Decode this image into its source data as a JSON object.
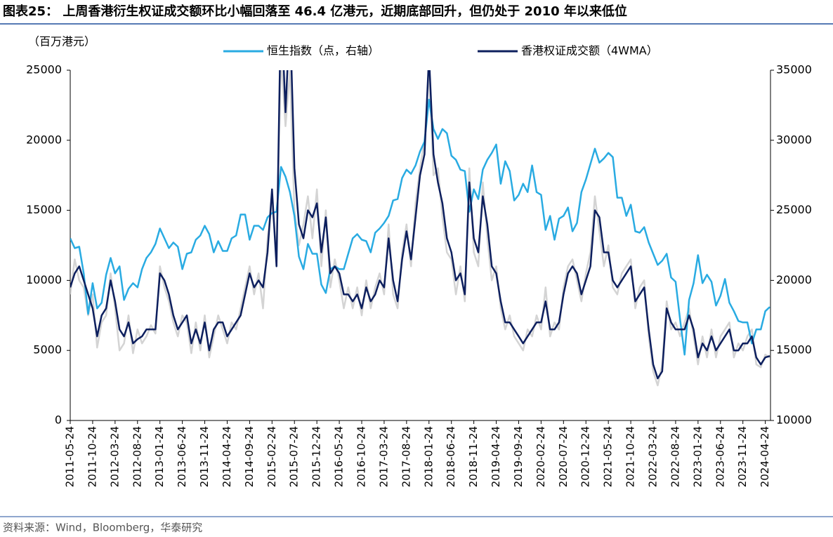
{
  "chart_data": {
    "type": "line",
    "title": "图表25：  上周香港衍生权证成交额环比小幅回落至 46.4 亿港元，近期底部回升，但仍处于 2010 年以来低位",
    "y_label": "（百万港元）",
    "source": "资料来源：Wind，Bloomberg，华泰研究",
    "legend": "top",
    "categories": [
      "2011-05-24",
      null,
      null,
      null,
      null,
      "2011-10-24",
      null,
      null,
      null,
      null,
      "2012-03-24",
      null,
      null,
      null,
      null,
      "2012-08-24",
      null,
      null,
      null,
      null,
      "2013-01-24",
      null,
      null,
      null,
      null,
      "2013-06-24",
      null,
      null,
      null,
      null,
      "2013-11-24",
      null,
      null,
      null,
      null,
      "2014-04-24",
      null,
      null,
      null,
      null,
      "2014-09-24",
      null,
      null,
      null,
      null,
      "2015-02-24",
      null,
      null,
      null,
      null,
      "2015-07-24",
      null,
      null,
      null,
      null,
      "2015-12-24",
      null,
      null,
      null,
      null,
      "2016-05-24",
      null,
      null,
      null,
      null,
      "2016-10-24",
      null,
      null,
      null,
      null,
      "2017-03-24",
      null,
      null,
      null,
      null,
      "2017-08-24",
      null,
      null,
      null,
      null,
      "2018-01-24",
      null,
      null,
      null,
      null,
      "2018-06-24",
      null,
      null,
      null,
      null,
      "2018-11-24",
      null,
      null,
      null,
      null,
      "2019-04-24",
      null,
      null,
      null,
      null,
      "2019-09-24",
      null,
      null,
      null,
      null,
      "2020-02-24",
      null,
      null,
      null,
      null,
      "2020-07-24",
      null,
      null,
      null,
      null,
      "2020-12-24",
      null,
      null,
      null,
      null,
      "2021-05-24",
      null,
      null,
      null,
      null,
      "2021-10-24",
      null,
      null,
      null,
      null,
      "2022-03-24",
      null,
      null,
      null,
      null,
      "2022-08-24",
      null,
      null,
      null,
      null,
      "2023-01-24",
      null,
      null,
      null,
      null,
      "2023-06-24",
      null,
      null,
      null,
      null,
      "2023-11-24",
      null,
      null,
      null,
      null,
      "2024-04-24",
      null
    ],
    "series": [
      {
        "color": "#d4d4d4",
        "values": [
          9000,
          11500,
          10000,
          9500,
          7500,
          9000,
          5200,
          7000,
          7500,
          10500,
          8000,
          5000,
          5500,
          7500,
          4800,
          6500,
          5500,
          6000,
          6800,
          6200,
          11000,
          9500,
          8500,
          7000,
          6000,
          7500,
          7000,
          4800,
          7000,
          5000,
          7500,
          4500,
          6000,
          7500,
          6500,
          5500,
          7000,
          6500,
          8000,
          9500,
          11000,
          9000,
          10500,
          8000,
          13000,
          15500,
          12000,
          26000,
          21000,
          25000,
          15000,
          12500,
          14000,
          16000,
          13000,
          16500,
          11000,
          15000,
          9500,
          11500,
          10000,
          8000,
          9500,
          8000,
          9500,
          7500,
          10000,
          8000,
          9500,
          10500,
          9000,
          14000,
          9000,
          8000,
          12000,
          14000,
          11000,
          15500,
          18000,
          20000,
          25000,
          17500,
          18000,
          14500,
          12000,
          11500,
          9000,
          11000,
          8500,
          18000,
          12000,
          11000,
          17000,
          13000,
          10000,
          11000,
          8000,
          6500,
          7500,
          6000,
          5500,
          5000,
          6500,
          6000,
          7500,
          6500,
          9500,
          6000,
          7000,
          6500,
          9500,
          11000,
          11500,
          10000,
          8500,
          10500,
          12000,
          16000,
          13500,
          11000,
          12500,
          9500,
          9000,
          10500,
          11000,
          11500,
          8000,
          9500,
          10000,
          6000,
          3500,
          2500,
          4000,
          8500,
          6500,
          7000,
          6000,
          7000,
          8000,
          6000,
          4000,
          6000,
          4500,
          6500,
          4500,
          6000,
          6500,
          7000,
          4500,
          5500,
          5000,
          6000,
          6500,
          4000,
          3800,
          4700,
          4500
        ]
      },
      {
        "name": "恒生指数（点，右轴）",
        "color": "#29abe2",
        "axis": "y2",
        "values": [
          23000,
          22300,
          22400,
          20500,
          17600,
          19800,
          18000,
          18400,
          20400,
          21600,
          20500,
          21000,
          18600,
          19400,
          19800,
          19500,
          20800,
          21600,
          22000,
          22600,
          23700,
          23000,
          22300,
          22700,
          22400,
          20800,
          21900,
          22000,
          22900,
          23200,
          23900,
          23300,
          22000,
          22800,
          22100,
          22100,
          23000,
          23200,
          24700,
          24700,
          22900,
          23900,
          23900,
          23600,
          24500,
          24800,
          24900,
          28100,
          27400,
          26300,
          24600,
          21700,
          20800,
          22600,
          21900,
          21900,
          19700,
          19100,
          20800,
          21000,
          20800,
          20800,
          21900,
          23000,
          23300,
          22900,
          22800,
          22000,
          23400,
          23700,
          24100,
          24600,
          25700,
          25800,
          27300,
          27900,
          27600,
          28200,
          29200,
          29900,
          32900,
          30800,
          30100,
          30800,
          30500,
          28900,
          28600,
          27900,
          27800,
          24900,
          26500,
          25800,
          27900,
          28600,
          29100,
          29700,
          26900,
          28500,
          27800,
          25700,
          26100,
          26900,
          26300,
          28200,
          26300,
          26100,
          23600,
          24600,
          22900,
          24400,
          24600,
          25200,
          23500,
          24100,
          26300,
          27200,
          28300,
          29400,
          28400,
          28700,
          29100,
          28800,
          25900,
          25900,
          24600,
          25400,
          23500,
          23400,
          23800,
          22700,
          21900,
          21100,
          21400,
          21900,
          20200,
          19900,
          17200,
          14700,
          18600,
          19800,
          21800,
          19800,
          20400,
          19900,
          18200,
          18900,
          20100,
          18400,
          17800,
          17100,
          17000,
          17000,
          15500,
          16500,
          16500,
          17800,
          18100
        ]
      },
      {
        "name": "香港权证成交额（4WMA）",
        "color": "#0d1f5e",
        "values": [
          9500,
          10500,
          11000,
          10000,
          9000,
          8000,
          6000,
          7500,
          8000,
          10000,
          8500,
          6500,
          6000,
          7000,
          5500,
          5800,
          6000,
          6500,
          6500,
          6500,
          10500,
          10000,
          9000,
          7500,
          6500,
          7000,
          7500,
          5500,
          6500,
          5500,
          7000,
          5000,
          6500,
          7000,
          7000,
          6000,
          6500,
          7000,
          7500,
          9000,
          10500,
          9500,
          10000,
          9500,
          12000,
          16500,
          11000,
          30000,
          22000,
          29000,
          18000,
          14000,
          13000,
          15000,
          14500,
          15500,
          12000,
          14500,
          10500,
          11000,
          10500,
          9000,
          9000,
          8500,
          9000,
          8000,
          9500,
          8500,
          9000,
          10000,
          9500,
          13000,
          10000,
          8500,
          11500,
          13500,
          11500,
          14500,
          17500,
          19000,
          26000,
          19000,
          17000,
          15500,
          13000,
          12000,
          10000,
          10500,
          9000,
          17000,
          13000,
          12000,
          16000,
          14000,
          11000,
          10500,
          8500,
          7000,
          7000,
          6500,
          6000,
          5500,
          6000,
          6500,
          7000,
          7000,
          8500,
          6500,
          6500,
          7000,
          9000,
          10500,
          11000,
          10500,
          9000,
          10000,
          11000,
          15000,
          14500,
          12000,
          12000,
          10000,
          9500,
          10000,
          10500,
          11000,
          8500,
          9000,
          9500,
          6500,
          4000,
          3000,
          3500,
          8000,
          7000,
          6500,
          6500,
          6500,
          7500,
          6500,
          4500,
          5500,
          5000,
          6000,
          5000,
          5500,
          6000,
          6500,
          5000,
          5000,
          5500,
          5500,
          6000,
          4500,
          4000,
          4500,
          4600
        ]
      }
    ],
    "ylim": [
      0,
      25000
    ],
    "yticks": [
      0,
      5000,
      10000,
      15000,
      20000,
      25000
    ],
    "y2lim": [
      10000,
      35000
    ],
    "y2ticks": [
      10000,
      15000,
      20000,
      25000,
      30000,
      35000
    ]
  }
}
